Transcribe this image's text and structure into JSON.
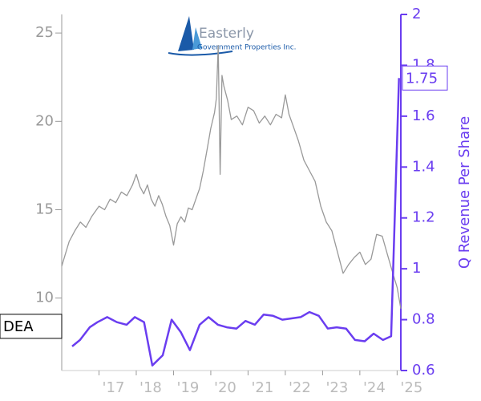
{
  "chart_data": {
    "type": "line",
    "logo": {
      "name": "Easterly",
      "subtitle": "Government Properties Inc."
    },
    "y2label": "Q Revenue Per Share",
    "xlim": [
      2016.0,
      2025.1
    ],
    "xticks": [
      {
        "value": 2017,
        "label": "'17"
      },
      {
        "value": 2018,
        "label": "'18"
      },
      {
        "value": 2019,
        "label": "'19"
      },
      {
        "value": 2020,
        "label": "'20"
      },
      {
        "value": 2021,
        "label": "'21"
      },
      {
        "value": 2022,
        "label": "'22"
      },
      {
        "value": 2023,
        "label": "'23"
      },
      {
        "value": 2024,
        "label": "'24"
      },
      {
        "value": 2025,
        "label": "'25"
      }
    ],
    "ylim": [
      5.9,
      26.05
    ],
    "yticks": [
      10,
      15,
      20,
      25
    ],
    "y2lim": [
      0.6,
      2.0
    ],
    "y2ticks": [
      0.6,
      0.8,
      1.0,
      1.2,
      1.4,
      1.6,
      1.8,
      2.0
    ],
    "series": [
      {
        "color": "#999999",
        "x": [
          2016.0,
          2016.1,
          2016.2,
          2016.35,
          2016.5,
          2016.65,
          2016.8,
          2016.9,
          2017.0,
          2017.15,
          2017.3,
          2017.45,
          2017.6,
          2017.75,
          2017.9,
          2018.0,
          2018.1,
          2018.2,
          2018.3,
          2018.4,
          2018.5,
          2018.6,
          2018.7,
          2018.8,
          2018.9,
          2019.0,
          2019.1,
          2019.2,
          2019.3,
          2019.4,
          2019.5,
          2019.6,
          2019.7,
          2019.8,
          2019.9,
          2020.0,
          2020.1,
          2020.15,
          2020.2,
          2020.25,
          2020.3,
          2020.35,
          2020.45,
          2020.55,
          2020.7,
          2020.85,
          2021.0,
          2021.15,
          2021.3,
          2021.45,
          2021.6,
          2021.75,
          2021.9,
          2022.0,
          2022.1,
          2022.2,
          2022.35,
          2022.5,
          2022.65,
          2022.8,
          2022.95,
          2023.1,
          2023.25,
          2023.4,
          2023.55,
          2023.7,
          2023.85,
          2024.0,
          2024.15,
          2024.3,
          2024.45,
          2024.6,
          2024.75,
          2024.9,
          2025.0,
          2025.1
        ],
        "values": [
          11.8,
          12.5,
          13.2,
          13.8,
          14.3,
          14.0,
          14.6,
          14.9,
          15.2,
          15.0,
          15.6,
          15.4,
          16.0,
          15.8,
          16.4,
          17.0,
          16.3,
          15.9,
          16.4,
          15.6,
          15.2,
          15.8,
          15.3,
          14.6,
          14.1,
          13.0,
          14.2,
          14.6,
          14.3,
          15.1,
          15.0,
          15.6,
          16.2,
          17.2,
          18.4,
          19.6,
          20.5,
          21.3,
          24.3,
          17.0,
          22.6,
          22.0,
          21.2,
          20.1,
          20.3,
          19.8,
          20.8,
          20.6,
          19.9,
          20.3,
          19.8,
          20.4,
          20.2,
          21.5,
          20.4,
          19.8,
          18.9,
          17.8,
          17.2,
          16.6,
          15.2,
          14.3,
          13.8,
          12.6,
          11.4,
          11.9,
          12.3,
          12.6,
          11.9,
          12.2,
          13.6,
          13.5,
          12.4,
          11.3,
          10.6,
          9.4
        ]
      },
      {
        "color": "#6a3df0",
        "axis": "y2",
        "x": [
          2016.28,
          2016.49,
          2016.75,
          2016.96,
          2017.22,
          2017.48,
          2017.74,
          2017.96,
          2018.21,
          2018.43,
          2018.71,
          2018.95,
          2019.2,
          2019.44,
          2019.7,
          2019.94,
          2020.19,
          2020.43,
          2020.69,
          2020.93,
          2021.18,
          2021.42,
          2021.67,
          2021.92,
          2022.17,
          2022.41,
          2022.65,
          2022.9,
          2023.14,
          2023.38,
          2023.63,
          2023.87,
          2024.13,
          2024.37,
          2024.62,
          2024.84,
          2025.05
        ],
        "values": [
          0.695,
          0.72,
          0.77,
          0.79,
          0.81,
          0.79,
          0.78,
          0.81,
          0.79,
          0.62,
          0.66,
          0.8,
          0.75,
          0.68,
          0.78,
          0.81,
          0.78,
          0.77,
          0.765,
          0.795,
          0.78,
          0.82,
          0.815,
          0.8,
          0.805,
          0.81,
          0.83,
          0.815,
          0.765,
          0.77,
          0.765,
          0.72,
          0.715,
          0.745,
          0.72,
          0.735,
          1.75
        ]
      }
    ],
    "annotations": [
      {
        "text": "DEA",
        "axis": "y",
        "value": 8.4
      },
      {
        "text": "1.75",
        "axis": "y2",
        "value": 1.75
      }
    ]
  }
}
